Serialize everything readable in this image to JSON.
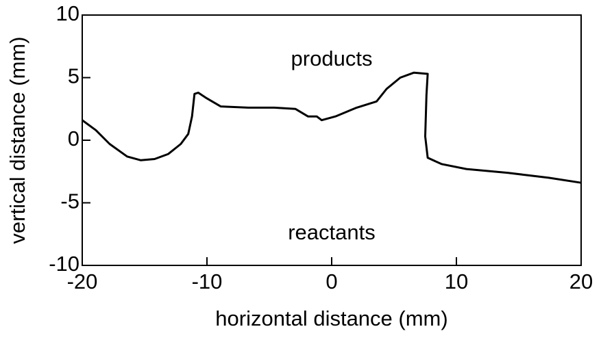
{
  "chart_data": {
    "type": "line",
    "xlabel": "horizontal distance (mm)",
    "ylabel": "vertical distance (mm)",
    "annotations": [
      "products",
      "reactants"
    ],
    "x": [
      -20,
      -18.9,
      -17.8,
      -16.4,
      -15.3,
      -14.2,
      -13.1,
      -12.1,
      -11.5,
      -11.2,
      -11.0,
      -10.7,
      -10.1,
      -8.9,
      -6.7,
      -4.6,
      -2.9,
      -1.9,
      -1.2,
      -0.8,
      0.3,
      2.0,
      3.6,
      4.4,
      5.5,
      6.6,
      7.7,
      7.6,
      7.5,
      7.7,
      8.8,
      10.8,
      14.1,
      17.4,
      20
    ],
    "values": [
      1.6,
      0.8,
      -0.3,
      -1.3,
      -1.6,
      -1.5,
      -1.1,
      -0.3,
      0.5,
      1.9,
      3.7,
      3.8,
      3.4,
      2.7,
      2.6,
      2.6,
      2.5,
      1.9,
      1.9,
      1.6,
      1.9,
      2.6,
      3.1,
      4.1,
      5.0,
      5.4,
      5.3,
      3.6,
      0.3,
      -1.4,
      -1.9,
      -2.3,
      -2.6,
      -3.0,
      -3.4
    ],
    "color": "#000000",
    "xlim": [
      -20,
      20
    ],
    "xticks": [
      -20,
      -10,
      0,
      10,
      20
    ],
    "ylim": [
      -10,
      10
    ],
    "yticks": [
      -10,
      -5,
      0,
      5,
      10
    ]
  }
}
